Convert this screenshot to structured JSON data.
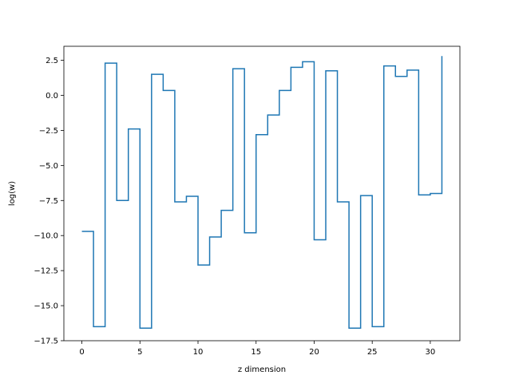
{
  "chart_data": {
    "type": "line",
    "drawstyle": "steps-post",
    "title": "",
    "xlabel": "z dimension",
    "ylabel": "log(w)",
    "xlim": [
      -1.55,
      32.55
    ],
    "ylim": [
      -17.5,
      3.5
    ],
    "grid": false,
    "legend": null,
    "line_color": "#1f77b4",
    "xticks": [
      0,
      5,
      10,
      15,
      20,
      25,
      30
    ],
    "yticks": [
      2.5,
      0.0,
      -2.5,
      -5.0,
      -7.5,
      -10.0,
      -12.5,
      -15.0,
      -17.5
    ],
    "ytick_labels": [
      "2.5",
      "0.0",
      "−2.5",
      "−5.0",
      "−7.5",
      "−10.0",
      "−12.5",
      "−15.0",
      "−17.5"
    ],
    "x": [
      0,
      1,
      2,
      3,
      4,
      5,
      6,
      7,
      8,
      9,
      10,
      11,
      12,
      13,
      14,
      15,
      16,
      17,
      18,
      19,
      20,
      21,
      22,
      23,
      24,
      25,
      26,
      27,
      28,
      29,
      30,
      31
    ],
    "y": [
      -9.7,
      -16.5,
      2.3,
      -7.5,
      -2.4,
      -16.6,
      1.5,
      0.35,
      -7.6,
      -7.2,
      -12.1,
      -10.1,
      -8.2,
      1.9,
      -9.8,
      -2.8,
      -1.4,
      0.35,
      2.0,
      2.4,
      -10.3,
      1.75,
      -7.6,
      -16.6,
      -7.15,
      -16.5,
      2.1,
      1.35,
      1.8,
      -7.1,
      -7.0,
      2.8
    ]
  }
}
